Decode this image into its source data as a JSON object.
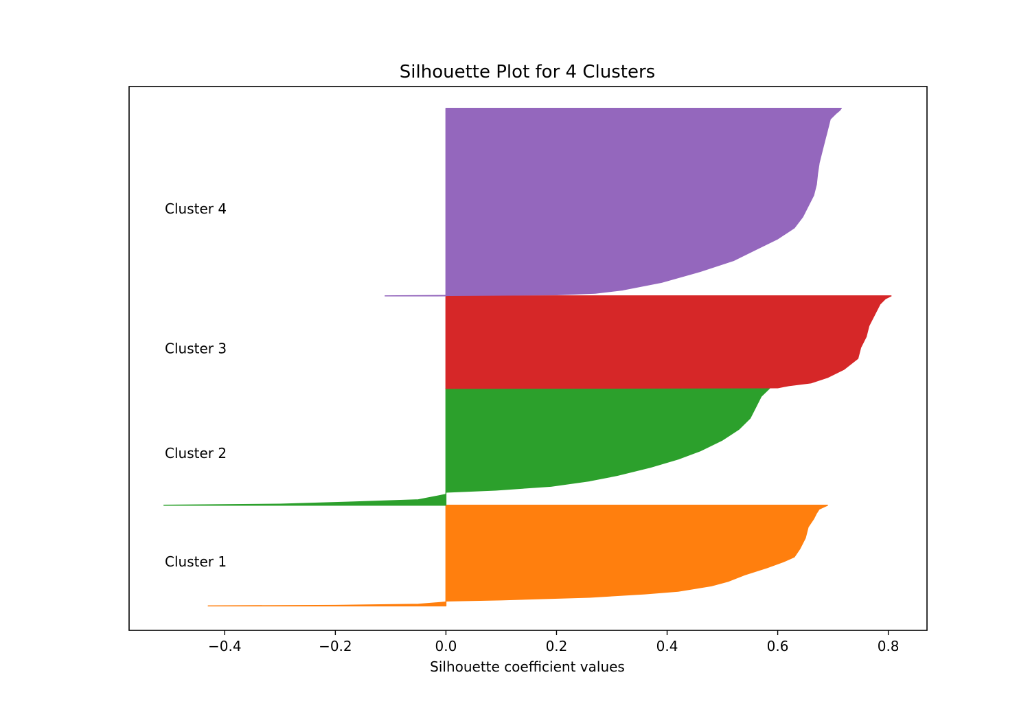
{
  "chart_data": {
    "type": "area",
    "title": "Silhouette Plot for 4 Clusters",
    "xlabel": "Silhouette coefficient values",
    "ylabel": "",
    "xlim": [
      -0.573,
      0.87
    ],
    "ylim": [
      0,
      100
    ],
    "grid": false,
    "legend": "none",
    "x_ticks": [
      -0.4,
      -0.2,
      0.0,
      0.2,
      0.4,
      0.6,
      0.8
    ],
    "x_tick_labels": [
      "−0.4",
      "−0.2",
      "0.0",
      "0.2",
      "0.4",
      "0.6",
      "0.8"
    ],
    "clusters": [
      {
        "label": "Cluster 1",
        "color": "#ff7f0e",
        "y_range": [
          4.5,
          23
        ],
        "label_y": 12.6,
        "profile": [
          [
            4.5,
            -0.43
          ],
          [
            4.6,
            -0.2
          ],
          [
            4.8,
            -0.05
          ],
          [
            5.2,
            0.0
          ],
          [
            5.4,
            0.0
          ],
          [
            5.6,
            0.1
          ],
          [
            6.1,
            0.26
          ],
          [
            6.7,
            0.36
          ],
          [
            7.2,
            0.42
          ],
          [
            8.2,
            0.48
          ],
          [
            9.0,
            0.51
          ],
          [
            10.2,
            0.54
          ],
          [
            11.5,
            0.58
          ],
          [
            12.6,
            0.61
          ],
          [
            13.5,
            0.63
          ],
          [
            15.0,
            0.64
          ],
          [
            17.0,
            0.65
          ],
          [
            19.0,
            0.655
          ],
          [
            20.5,
            0.665
          ],
          [
            21.5,
            0.67
          ],
          [
            22.3,
            0.675
          ],
          [
            23.0,
            0.69
          ]
        ]
      },
      {
        "label": "Cluster 2",
        "color": "#2ca02c",
        "y_range": [
          23,
          44.5
        ],
        "label_y": 32.6,
        "profile": [
          [
            23.0,
            -0.51
          ],
          [
            23.2,
            -0.3
          ],
          [
            23.6,
            -0.17
          ],
          [
            24.0,
            -0.05
          ],
          [
            25.0,
            0.0
          ],
          [
            25.4,
            0.0
          ],
          [
            25.8,
            0.09
          ],
          [
            26.5,
            0.19
          ],
          [
            27.5,
            0.26
          ],
          [
            28.5,
            0.31
          ],
          [
            30.0,
            0.37
          ],
          [
            31.5,
            0.42
          ],
          [
            33.0,
            0.46
          ],
          [
            35.0,
            0.5
          ],
          [
            37.0,
            0.53
          ],
          [
            39.0,
            0.55
          ],
          [
            41.0,
            0.56
          ],
          [
            43.0,
            0.57
          ],
          [
            44.5,
            0.585
          ]
        ]
      },
      {
        "label": "Cluster 3",
        "color": "#d62728",
        "y_range": [
          44.5,
          61.5
        ],
        "label_y": 51.8,
        "profile": [
          [
            44.5,
            0.0
          ],
          [
            44.6,
            0.6
          ],
          [
            45.0,
            0.62
          ],
          [
            45.5,
            0.66
          ],
          [
            46.5,
            0.69
          ],
          [
            48.0,
            0.72
          ],
          [
            50.0,
            0.745
          ],
          [
            52.0,
            0.75
          ],
          [
            54.0,
            0.76
          ],
          [
            56.0,
            0.765
          ],
          [
            58.0,
            0.775
          ],
          [
            60.0,
            0.785
          ],
          [
            61.0,
            0.795
          ],
          [
            61.5,
            0.805
          ]
        ]
      },
      {
        "label": "Cluster 4",
        "color": "#9467bd",
        "y_range": [
          61.5,
          96
        ],
        "label_y": 77.5,
        "profile": [
          [
            61.5,
            -0.11
          ],
          [
            61.7,
            0.2
          ],
          [
            62.0,
            0.27
          ],
          [
            62.6,
            0.32
          ],
          [
            64.0,
            0.39
          ],
          [
            66.0,
            0.46
          ],
          [
            68.0,
            0.52
          ],
          [
            70.0,
            0.56
          ],
          [
            72.0,
            0.6
          ],
          [
            74.0,
            0.63
          ],
          [
            76.0,
            0.645
          ],
          [
            78.0,
            0.655
          ],
          [
            80.0,
            0.665
          ],
          [
            82.0,
            0.67
          ],
          [
            84.0,
            0.672
          ],
          [
            86.0,
            0.675
          ],
          [
            88.0,
            0.68
          ],
          [
            90.0,
            0.685
          ],
          [
            92.0,
            0.69
          ],
          [
            94.0,
            0.695
          ],
          [
            95.0,
            0.705
          ],
          [
            95.6,
            0.712
          ],
          [
            96.0,
            0.715
          ]
        ]
      }
    ]
  }
}
